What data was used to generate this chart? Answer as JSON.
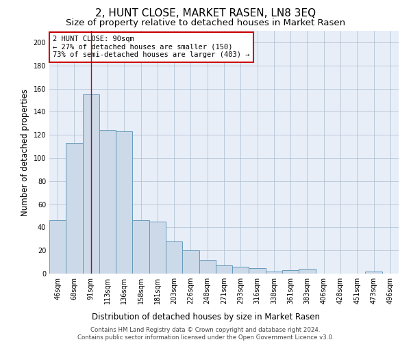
{
  "title": "2, HUNT CLOSE, MARKET RASEN, LN8 3EQ",
  "subtitle": "Size of property relative to detached houses in Market Rasen",
  "xlabel": "Distribution of detached houses by size in Market Rasen",
  "ylabel": "Number of detached properties",
  "categories": [
    "46sqm",
    "68sqm",
    "91sqm",
    "113sqm",
    "136sqm",
    "158sqm",
    "181sqm",
    "203sqm",
    "226sqm",
    "248sqm",
    "271sqm",
    "293sqm",
    "316sqm",
    "338sqm",
    "361sqm",
    "383sqm",
    "406sqm",
    "428sqm",
    "451sqm",
    "473sqm",
    "496sqm"
  ],
  "values": [
    46,
    113,
    155,
    124,
    123,
    46,
    45,
    28,
    20,
    12,
    7,
    6,
    5,
    2,
    3,
    4,
    0,
    0,
    0,
    2,
    0
  ],
  "bar_color": "#ccd9e8",
  "bar_edge_color": "#6699bb",
  "vline_x_index": 2,
  "vline_color": "#cc0000",
  "annotation_text": "2 HUNT CLOSE: 90sqm\n← 27% of detached houses are smaller (150)\n73% of semi-detached houses are larger (403) →",
  "annotation_box_color": "#ffffff",
  "annotation_box_edge": "#cc0000",
  "ylim": [
    0,
    210
  ],
  "yticks": [
    0,
    20,
    40,
    60,
    80,
    100,
    120,
    140,
    160,
    180,
    200
  ],
  "footer": "Contains HM Land Registry data © Crown copyright and database right 2024.\nContains public sector information licensed under the Open Government Licence v3.0.",
  "plot_bg_color": "#e8eef8",
  "title_fontsize": 11,
  "subtitle_fontsize": 9.5,
  "tick_fontsize": 7,
  "ylabel_fontsize": 8.5,
  "xlabel_fontsize": 8.5,
  "annotation_fontsize": 7.5
}
